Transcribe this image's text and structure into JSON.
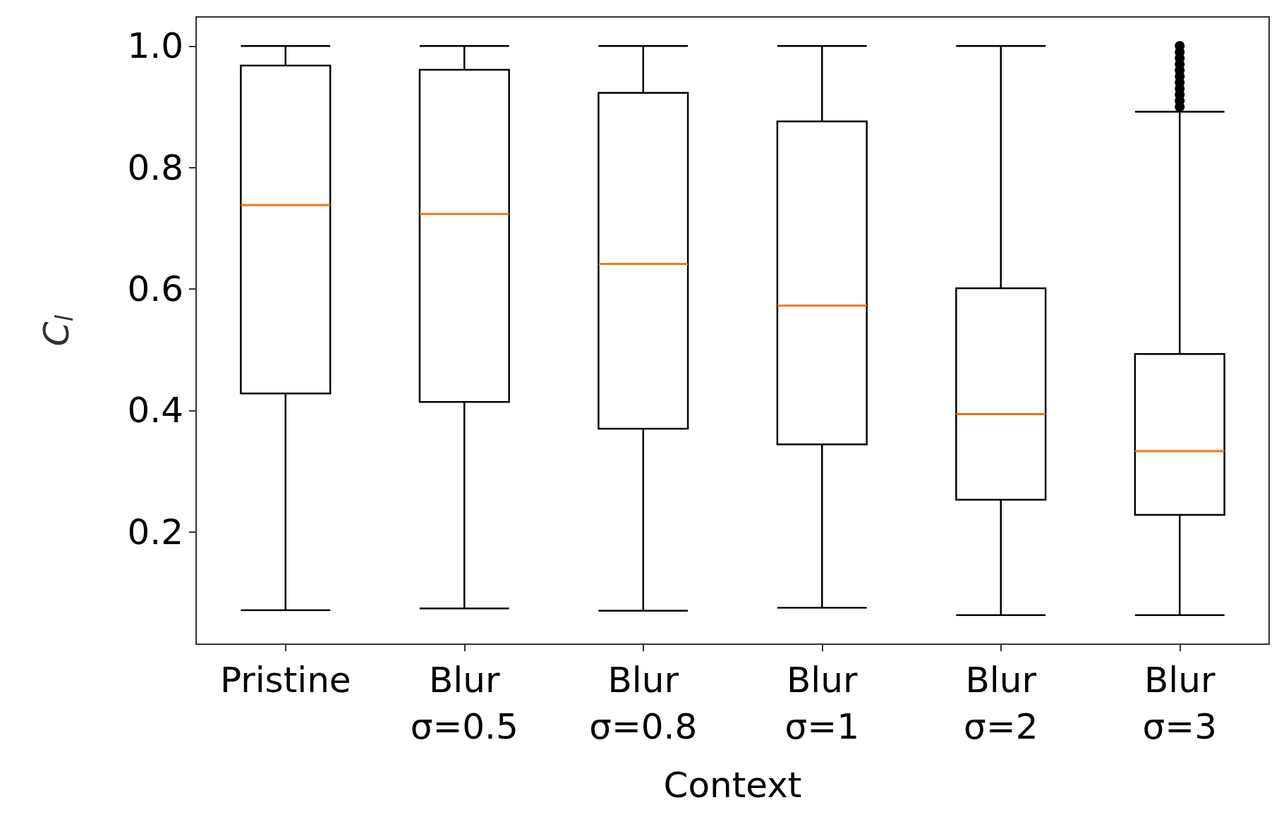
{
  "chart_data": {
    "type": "box",
    "xlabel": "Context",
    "ylabel": "C$_{l}$",
    "categories": [
      "Pristine",
      "Blur\nσ=0.5",
      "Blur\nσ=0.8",
      "Blur\nσ=1",
      "Blur\nσ=2",
      "Blur\nσ=3"
    ],
    "series": [
      {
        "color": "#000000",
        "boxes": [
          {
            "low": 0.071,
            "q1": 0.428,
            "median": 0.738,
            "q3": 0.968,
            "high": 1.0
          },
          {
            "low": 0.074,
            "q1": 0.414,
            "median": 0.724,
            "q3": 0.961,
            "high": 1.0
          },
          {
            "low": 0.07,
            "q1": 0.37,
            "median": 0.641,
            "q3": 0.923,
            "high": 1.0
          },
          {
            "low": 0.075,
            "q1": 0.344,
            "median": 0.573,
            "q3": 0.876,
            "high": 1.0
          },
          {
            "low": 0.063,
            "q1": 0.253,
            "median": 0.394,
            "q3": 0.601,
            "high": 1.0
          },
          {
            "low": 0.063,
            "q1": 0.228,
            "median": 0.333,
            "q3": 0.493,
            "high": 0.892,
            "outliers": [
              0.9,
              0.91,
              0.92,
              0.93,
              0.94,
              0.95,
              0.96,
              0.97,
              0.98,
              0.99,
              1.0
            ]
          }
        ]
      }
    ],
    "ylim": [
      0.015,
      1.048
    ],
    "yticks": [
      0.2,
      0.4,
      0.6,
      0.8,
      {
        "value": 1,
        "label": "1.0"
      }
    ],
    "grid": false
  }
}
